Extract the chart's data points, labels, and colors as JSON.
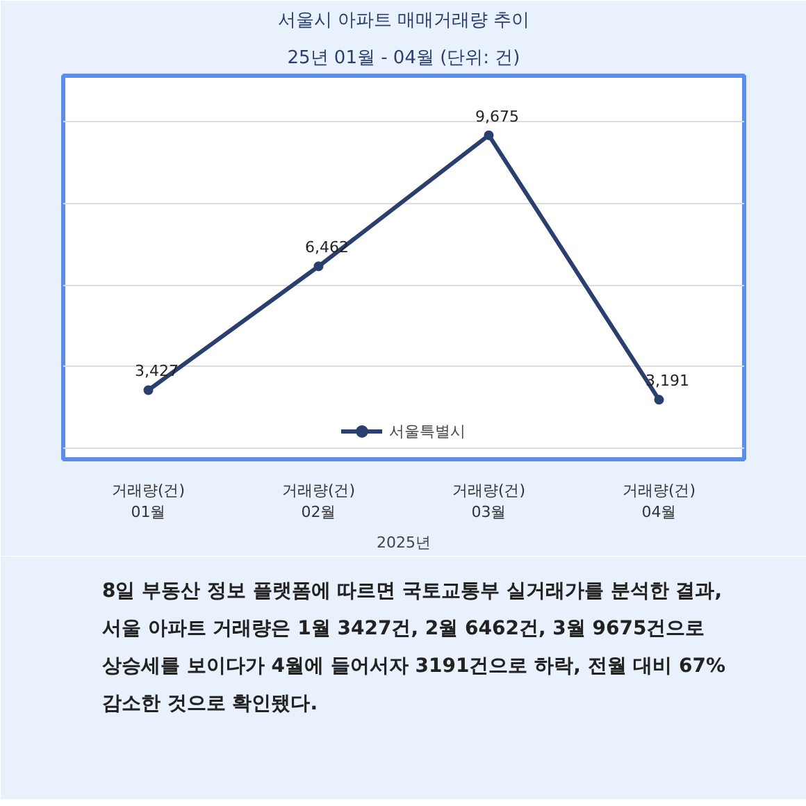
{
  "chart_data": {
    "type": "line",
    "title": "서울시 아파트 매매거래량 추이",
    "subtitle": "25년 01월 - 04월 (단위: 건)",
    "categories": [
      "거래량(건)\n01월",
      "거래량(건)\n02월",
      "거래량(건)\n03월",
      "거래량(건)\n04월"
    ],
    "xlabel": "2025년",
    "series": [
      {
        "name": "서울특별시",
        "color": "#2a3f6e",
        "values": [
          3427,
          6462,
          9675,
          3191
        ],
        "value_labels": [
          "3,427",
          "6,462",
          "9,675",
          "3,191"
        ]
      }
    ],
    "tick_labels": "x",
    "grid": "y",
    "legend": "bottom",
    "marker": "circle",
    "line_style": "solid",
    "annotations": [
      "8일 부동산 정보 플랫폼에 따르면 국토교통부 실거래가를 분석한 결과, 서울 아파트 거래량은 1월 3427건, 2월 6462건, 3월 9675건으로 상승세를 보이다가 4월에 들어서자 3191건으로 하락, 전월 대비 67% 감소한 것으로 확인됐다."
    ]
  }
}
